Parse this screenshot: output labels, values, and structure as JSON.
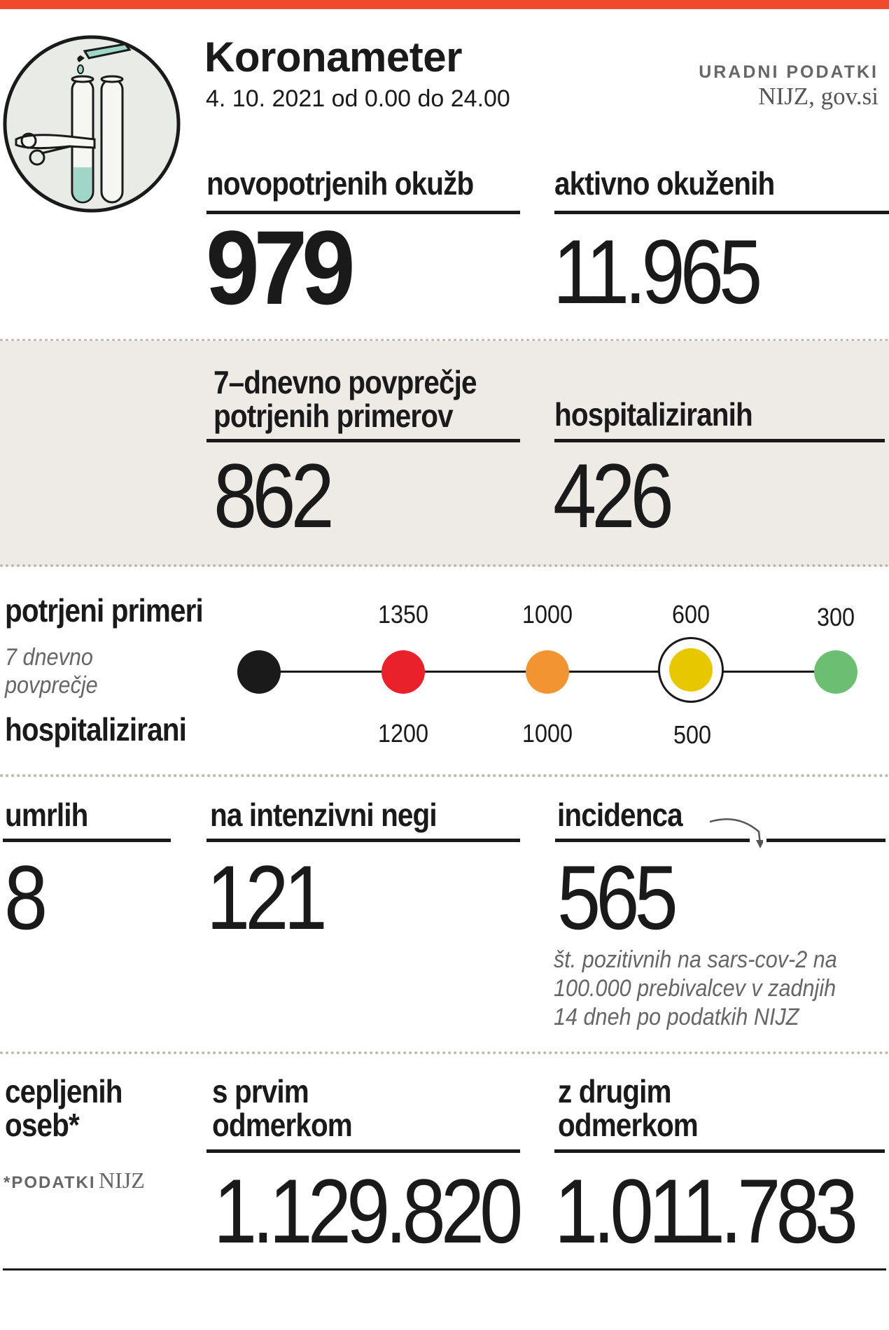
{
  "header": {
    "title": "Koronameter",
    "date": "4. 10. 2021 od 0.00 do 24.00",
    "source_label": "URADNI PODATKI",
    "source": "NIJZ, gov.si",
    "logo_icon": "test-tubes-icon",
    "accent_color": "#ee4a2b"
  },
  "stats_top": {
    "new_infections_label": "novopotrjenih okužb",
    "new_infections_value": "979",
    "active_label": "aktivno okuženih",
    "active_value": "11.965"
  },
  "stats_mid": {
    "avg_label_line1": "7–dnevno povprečje",
    "avg_label_line2": "potrjenih primerov",
    "avg_value": "862",
    "hosp_label": "hospitaliziranih",
    "hosp_value": "426"
  },
  "scale": {
    "cases_label": "potrjeni primeri",
    "avg_note_line1": "7 dnevno",
    "avg_note_line2": "povprečje",
    "hosp_label": "hospitalizirani",
    "levels": [
      {
        "color": "#1a1a1a",
        "cases": "",
        "hosp": ""
      },
      {
        "color": "#e8212b",
        "cases": "1350",
        "hosp": "1200"
      },
      {
        "color": "#f39433",
        "cases": "1000",
        "hosp": "1000"
      },
      {
        "color": "#e6c700",
        "cases": "600",
        "hosp": "500",
        "current": true
      },
      {
        "color": "#6cbf72",
        "cases": "300",
        "hosp": ""
      }
    ]
  },
  "stats_lower": {
    "deaths_label": "umrlih",
    "deaths_value": "8",
    "icu_label": "na intenzivni negi",
    "icu_value": "121",
    "incidence_label": "incidenca",
    "incidence_value": "565",
    "incidence_note_line1": "št. pozitivnih na sars-cov-2 na",
    "incidence_note_line2": "100.000 prebivalcev v zadnjih",
    "incidence_note_line3": "14 dneh po podatkih NIJZ"
  },
  "vaccination": {
    "label_line1": "cepljenih",
    "label_line2": "oseb*",
    "footnote_prefix": "*PODATKI",
    "footnote_source": "NIJZ",
    "first_label_line1": "s prvim",
    "first_label_line2": "odmerkom",
    "first_value": "1.129.820",
    "second_label_line1": "z drugim",
    "second_label_line2": "odmerkom",
    "second_value": "1.011.783"
  }
}
